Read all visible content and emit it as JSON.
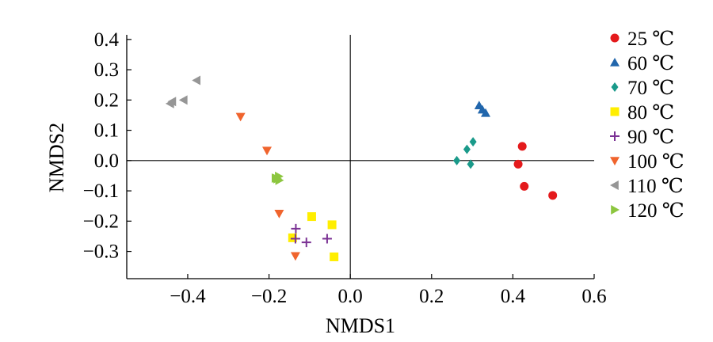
{
  "chart_data": {
    "type": "scatter",
    "title": "",
    "xlabel": "NMDS1",
    "ylabel": "NMDS2",
    "xlim": [
      -0.55,
      0.6
    ],
    "ylim": [
      -0.39,
      0.41
    ],
    "xticks": [
      -0.4,
      -0.2,
      0.0,
      0.2,
      0.4,
      0.6
    ],
    "xtick_labels": [
      "−0.4",
      "−0.2",
      "0.0",
      "0.2",
      "0.4",
      "0.6"
    ],
    "yticks": [
      -0.3,
      -0.2,
      -0.1,
      0.0,
      0.1,
      0.2,
      0.3,
      0.4
    ],
    "ytick_labels": [
      "−0.3",
      "−0.2",
      "−0.1",
      "0.0",
      "0.1",
      "0.2",
      "0.3",
      "0.4"
    ],
    "reference_lines": {
      "x": 0.0,
      "y": 0.0
    },
    "grid": false,
    "legend_position": "right",
    "series": [
      {
        "name": "25 ℃",
        "marker": "circle",
        "color": "#e41a1c",
        "points": [
          [
            0.423,
            0.047
          ],
          [
            0.413,
            -0.012
          ],
          [
            0.428,
            -0.085
          ],
          [
            0.498,
            -0.115
          ]
        ]
      },
      {
        "name": "60 ℃",
        "marker": "triangle-up",
        "color": "#2166ac",
        "points": [
          [
            0.317,
            0.182
          ],
          [
            0.325,
            0.168
          ],
          [
            0.333,
            0.157
          ]
        ]
      },
      {
        "name": "70 ℃",
        "marker": "diamond",
        "color": "#1a9a8a",
        "points": [
          [
            0.262,
            0.0
          ],
          [
            0.287,
            0.037
          ],
          [
            0.302,
            0.062
          ],
          [
            0.296,
            -0.012
          ]
        ]
      },
      {
        "name": "80 ℃",
        "marker": "square",
        "color": "#ffee00",
        "points": [
          [
            -0.095,
            -0.185
          ],
          [
            -0.045,
            -0.212
          ],
          [
            -0.142,
            -0.255
          ],
          [
            -0.04,
            -0.318
          ]
        ]
      },
      {
        "name": "90 ℃",
        "marker": "plus",
        "color": "#7b3294",
        "points": [
          [
            -0.134,
            -0.225
          ],
          [
            -0.135,
            -0.258
          ],
          [
            -0.108,
            -0.27
          ],
          [
            -0.057,
            -0.258
          ]
        ]
      },
      {
        "name": "100 ℃",
        "marker": "triangle-down",
        "color": "#f0642d",
        "points": [
          [
            -0.27,
            0.145
          ],
          [
            -0.205,
            0.033
          ],
          [
            -0.175,
            -0.175
          ],
          [
            -0.135,
            -0.315
          ]
        ]
      },
      {
        "name": "110 ℃",
        "marker": "triangle-left",
        "color": "#969696",
        "points": [
          [
            -0.378,
            0.265
          ],
          [
            -0.41,
            0.2
          ],
          [
            -0.438,
            0.195
          ],
          [
            -0.443,
            0.188
          ]
        ]
      },
      {
        "name": "120 ℃",
        "marker": "triangle-right",
        "color": "#8cc63f",
        "points": [
          [
            -0.176,
            -0.052
          ],
          [
            -0.18,
            -0.06
          ],
          [
            -0.175,
            -0.065
          ],
          [
            -0.184,
            -0.058
          ]
        ]
      }
    ]
  }
}
